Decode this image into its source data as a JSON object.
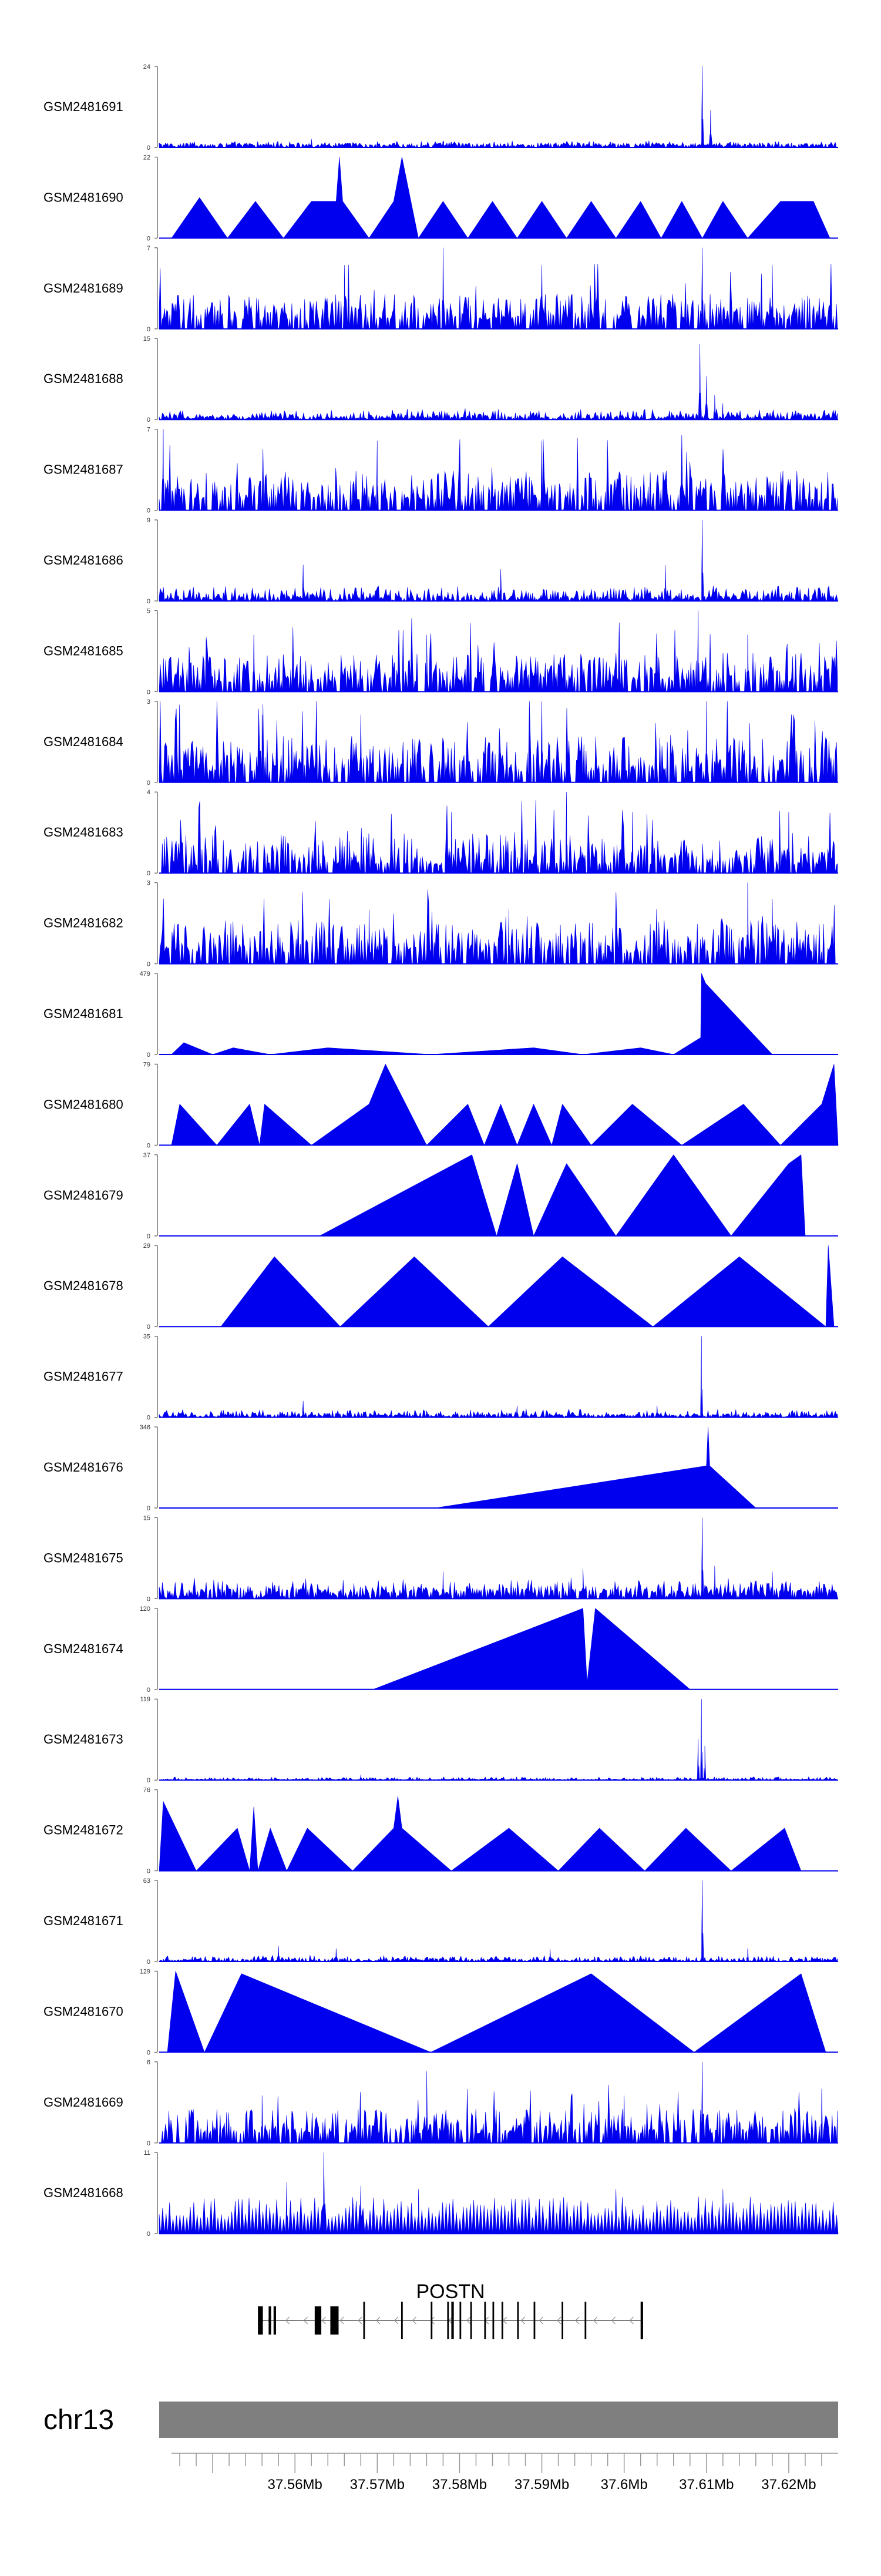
{
  "chart_data": {
    "type": "area",
    "title": "",
    "chromosome": "chr13",
    "xlim": [
      37.5435,
      37.626
    ],
    "x_unit": "Mb",
    "x_tick_labels": [
      "37.56Mb",
      "37.57Mb",
      "37.58Mb",
      "37.59Mb",
      "37.6Mb",
      "37.61Mb",
      "37.62Mb"
    ],
    "x_tick_values": [
      37.56,
      37.57,
      37.58,
      37.59,
      37.6,
      37.61,
      37.62
    ],
    "gene": {
      "name": "POSTN",
      "strand": "-",
      "start": 37.5555,
      "end": 37.6023,
      "exons": [
        [
          37.5555,
          37.5561
        ],
        [
          37.5568,
          37.5571
        ],
        [
          37.5574,
          37.5577
        ],
        [
          37.5624,
          37.5632
        ],
        [
          37.5643,
          37.5653
        ],
        [
          37.5683,
          37.5685
        ],
        [
          37.5729,
          37.5731
        ],
        [
          37.5765,
          37.5767
        ],
        [
          37.5785,
          37.5787
        ],
        [
          37.579,
          37.5793
        ],
        [
          37.58,
          37.5802
        ],
        [
          37.5813,
          37.5815
        ],
        [
          37.583,
          37.5832
        ],
        [
          37.584,
          37.5842
        ],
        [
          37.5851,
          37.5853
        ],
        [
          37.587,
          37.5872
        ],
        [
          37.589,
          37.5892
        ],
        [
          37.5924,
          37.5926
        ],
        [
          37.5952,
          37.5954
        ],
        [
          37.602,
          37.6023
        ]
      ]
    },
    "series": [
      {
        "name": "GSM2481691",
        "ymin": 0,
        "ymax": 24,
        "style": "dense",
        "baseline": 1.2,
        "noise": 0.8,
        "peaks": [
          [
            37.6095,
            24
          ],
          [
            37.6105,
            11
          ],
          [
            37.562,
            2.5
          ],
          [
            37.578,
            2
          ],
          [
            37.603,
            2
          ]
        ]
      },
      {
        "name": "GSM2481690",
        "ymin": 0,
        "ymax": 22,
        "style": "triangles",
        "points": [
          [
            37.545,
            0
          ],
          [
            37.5484,
            11
          ],
          [
            37.5518,
            0
          ],
          [
            37.5552,
            10
          ],
          [
            37.5586,
            0
          ],
          [
            37.562,
            10
          ],
          [
            37.565,
            10
          ],
          [
            37.5654,
            22
          ],
          [
            37.5658,
            10
          ],
          [
            37.569,
            0
          ],
          [
            37.572,
            10
          ],
          [
            37.573,
            22
          ],
          [
            37.575,
            0
          ],
          [
            37.578,
            10
          ],
          [
            37.581,
            0
          ],
          [
            37.584,
            10
          ],
          [
            37.587,
            0
          ],
          [
            37.59,
            10
          ],
          [
            37.593,
            0
          ],
          [
            37.596,
            10
          ],
          [
            37.599,
            0
          ],
          [
            37.602,
            10
          ],
          [
            37.6045,
            0
          ],
          [
            37.607,
            10
          ],
          [
            37.6095,
            0
          ],
          [
            37.612,
            10
          ],
          [
            37.615,
            0
          ],
          [
            37.619,
            10
          ],
          [
            37.623,
            10
          ],
          [
            37.625,
            0
          ]
        ]
      },
      {
        "name": "GSM2481689",
        "ymin": 0,
        "ymax": 7,
        "style": "spiky",
        "baseline": 0.8,
        "noise": 2.2,
        "peaks": [
          [
            37.578,
            7
          ],
          [
            37.6095,
            7
          ],
          [
            37.566,
            5.5
          ],
          [
            37.59,
            5.5
          ],
          [
            37.618,
            5.5
          ]
        ]
      },
      {
        "name": "GSM2481688",
        "ymin": 0,
        "ymax": 15,
        "style": "dense",
        "baseline": 0.6,
        "noise": 1.5,
        "peaks": [
          [
            37.6092,
            14
          ],
          [
            37.61,
            8
          ],
          [
            37.611,
            4.5
          ],
          [
            37.612,
            3
          ]
        ]
      },
      {
        "name": "GSM2481687",
        "ymin": 0,
        "ymax": 7,
        "style": "spiky",
        "baseline": 0.9,
        "noise": 2.5,
        "peaks": [
          [
            37.544,
            7
          ],
          [
            37.57,
            6
          ],
          [
            37.59,
            6
          ],
          [
            37.607,
            6.5
          ]
        ]
      },
      {
        "name": "GSM2481686",
        "ymin": 0,
        "ymax": 9,
        "style": "dense",
        "baseline": 0.5,
        "noise": 1.3,
        "peaks": [
          [
            37.6095,
            9
          ],
          [
            37.561,
            4
          ],
          [
            37.585,
            3.5
          ],
          [
            37.605,
            4
          ]
        ]
      },
      {
        "name": "GSM2481685",
        "ymin": 0,
        "ymax": 5,
        "style": "spiky",
        "baseline": 0.6,
        "noise": 1.8,
        "peaks": [
          [
            37.609,
            5
          ],
          [
            37.555,
            3.5
          ],
          [
            37.576,
            3.5
          ],
          [
            37.615,
            3.5
          ]
        ]
      },
      {
        "name": "GSM2481684",
        "ymin": 0,
        "ymax": 3,
        "style": "spiky",
        "baseline": 0.4,
        "noise": 1.3,
        "peaks": [
          [
            37.59,
            3
          ],
          [
            37.61,
            3
          ],
          [
            37.556,
            2.5
          ],
          [
            37.568,
            2.5
          ]
        ]
      },
      {
        "name": "GSM2481683",
        "ymin": 0,
        "ymax": 4,
        "style": "spiky",
        "baseline": 0.4,
        "noise": 1.5,
        "peaks": [
          [
            37.593,
            4
          ],
          [
            37.579,
            3
          ],
          [
            37.601,
            3
          ],
          [
            37.62,
            3
          ]
        ]
      },
      {
        "name": "GSM2481682",
        "ymin": 0,
        "ymax": 3,
        "style": "spiky",
        "baseline": 0.4,
        "noise": 1.2,
        "peaks": [
          [
            37.615,
            3
          ],
          [
            37.618,
            2.4
          ],
          [
            37.569,
            2
          ],
          [
            37.586,
            2
          ]
        ]
      },
      {
        "name": "GSM2481681",
        "ymin": 0,
        "ymax": 479,
        "style": "triangles",
        "points": [
          [
            37.545,
            0
          ],
          [
            37.5465,
            70
          ],
          [
            37.55,
            0
          ],
          [
            37.5525,
            40
          ],
          [
            37.557,
            0
          ],
          [
            37.564,
            40
          ],
          [
            37.5765,
            0
          ],
          [
            37.589,
            40
          ],
          [
            37.595,
            0
          ],
          [
            37.602,
            40
          ],
          [
            37.606,
            0
          ],
          [
            37.6093,
            100
          ],
          [
            37.6094,
            479
          ],
          [
            37.6099,
            420
          ],
          [
            37.618,
            0
          ]
        ]
      },
      {
        "name": "GSM2481680",
        "ymin": 0,
        "ymax": 79,
        "style": "triangles",
        "points": [
          [
            37.545,
            0
          ],
          [
            37.546,
            40
          ],
          [
            37.5505,
            0
          ],
          [
            37.5545,
            40
          ],
          [
            37.5557,
            0
          ],
          [
            37.5563,
            40
          ],
          [
            37.562,
            0
          ],
          [
            37.569,
            40
          ],
          [
            37.571,
            79
          ],
          [
            37.576,
            0
          ],
          [
            37.581,
            40
          ],
          [
            37.583,
            0
          ],
          [
            37.585,
            40
          ],
          [
            37.587,
            0
          ],
          [
            37.589,
            40
          ],
          [
            37.5912,
            0
          ],
          [
            37.5925,
            40
          ],
          [
            37.596,
            0
          ],
          [
            37.601,
            40
          ],
          [
            37.607,
            0
          ],
          [
            37.6145,
            40
          ],
          [
            37.619,
            0
          ],
          [
            37.624,
            40
          ],
          [
            37.6255,
            79
          ],
          [
            37.626,
            0
          ]
        ]
      },
      {
        "name": "GSM2481679",
        "ymin": 0,
        "ymax": 37,
        "style": "triangles",
        "points": [
          [
            37.563,
            0
          ],
          [
            37.5815,
            37
          ],
          [
            37.5845,
            0
          ],
          [
            37.587,
            33
          ],
          [
            37.589,
            0
          ],
          [
            37.593,
            33
          ],
          [
            37.599,
            0
          ],
          [
            37.606,
            37
          ],
          [
            37.613,
            0
          ],
          [
            37.62,
            33
          ],
          [
            37.6215,
            37
          ],
          [
            37.622,
            0
          ]
        ]
      },
      {
        "name": "GSM2481678",
        "ymin": 0,
        "ymax": 29,
        "style": "triangles",
        "points": [
          [
            37.551,
            0
          ],
          [
            37.5575,
            25
          ],
          [
            37.5655,
            0
          ],
          [
            37.5745,
            25
          ],
          [
            37.5835,
            0
          ],
          [
            37.5925,
            25
          ],
          [
            37.6035,
            0
          ],
          [
            37.614,
            25
          ],
          [
            37.6245,
            0
          ],
          [
            37.6248,
            29
          ],
          [
            37.6255,
            0
          ]
        ]
      },
      {
        "name": "GSM2481677",
        "ymin": 0,
        "ymax": 35,
        "style": "dense",
        "baseline": 1.2,
        "noise": 2.5,
        "peaks": [
          [
            37.6094,
            35
          ],
          [
            37.561,
            7
          ],
          [
            37.587,
            5
          ],
          [
            37.604,
            5
          ]
        ]
      },
      {
        "name": "GSM2481676",
        "ymin": 0,
        "ymax": 346,
        "style": "triangles",
        "points": [
          [
            37.577,
            0
          ],
          [
            37.61,
            180
          ],
          [
            37.6102,
            346
          ],
          [
            37.6104,
            180
          ],
          [
            37.616,
            0
          ]
        ]
      },
      {
        "name": "GSM2481675",
        "ymin": 0,
        "ymax": 15,
        "style": "dense",
        "baseline": 1.8,
        "noise": 2.4,
        "peaks": [
          [
            37.6095,
            15
          ],
          [
            37.578,
            5
          ],
          [
            37.595,
            5.5
          ],
          [
            37.611,
            6
          ],
          [
            37.618,
            5
          ]
        ]
      },
      {
        "name": "GSM2481674",
        "ymin": 0,
        "ymax": 120,
        "style": "triangles",
        "points": [
          [
            37.5695,
            0
          ],
          [
            37.595,
            120
          ],
          [
            37.5955,
            10
          ],
          [
            37.5965,
            120
          ],
          [
            37.608,
            0
          ]
        ]
      },
      {
        "name": "GSM2481673",
        "ymin": 0,
        "ymax": 119,
        "style": "dense",
        "baseline": 1.5,
        "noise": 3.5,
        "peaks": [
          [
            37.6094,
            119
          ],
          [
            37.609,
            60
          ],
          [
            37.6098,
            50
          ],
          [
            37.568,
            8
          ]
        ]
      },
      {
        "name": "GSM2481672",
        "ymin": 0,
        "ymax": 76,
        "style": "triangles",
        "points": [
          [
            37.5435,
            0
          ],
          [
            37.544,
            65
          ],
          [
            37.548,
            0
          ],
          [
            37.553,
            40
          ],
          [
            37.5545,
            0
          ],
          [
            37.555,
            60
          ],
          [
            37.5555,
            0
          ],
          [
            37.557,
            40
          ],
          [
            37.559,
            0
          ],
          [
            37.5615,
            40
          ],
          [
            37.567,
            0
          ],
          [
            37.572,
            40
          ],
          [
            37.5725,
            70
          ],
          [
            37.573,
            40
          ],
          [
            37.579,
            0
          ],
          [
            37.586,
            40
          ],
          [
            37.592,
            0
          ],
          [
            37.597,
            40
          ],
          [
            37.6025,
            0
          ],
          [
            37.6075,
            40
          ],
          [
            37.613,
            0
          ],
          [
            37.6195,
            40
          ],
          [
            37.6215,
            0
          ]
        ]
      },
      {
        "name": "GSM2481671",
        "ymin": 0,
        "ymax": 63,
        "style": "dense",
        "baseline": 1.5,
        "noise": 3.5,
        "peaks": [
          [
            37.6095,
            63
          ],
          [
            37.558,
            12
          ],
          [
            37.565,
            10
          ],
          [
            37.591,
            10
          ],
          [
            37.615,
            10
          ]
        ]
      },
      {
        "name": "GSM2481670",
        "ymin": 0,
        "ymax": 129,
        "style": "triangles",
        "points": [
          [
            37.5445,
            0
          ],
          [
            37.5455,
            129
          ],
          [
            37.549,
            0
          ],
          [
            37.5535,
            125
          ],
          [
            37.5765,
            0
          ],
          [
            37.596,
            125
          ],
          [
            37.6085,
            0
          ],
          [
            37.6215,
            125
          ],
          [
            37.6245,
            0
          ]
        ]
      },
      {
        "name": "GSM2481669",
        "ymin": 0,
        "ymax": 6,
        "style": "spiky",
        "baseline": 0.7,
        "noise": 1.8,
        "peaks": [
          [
            37.6095,
            6
          ],
          [
            37.576,
            5.3
          ],
          [
            37.556,
            3.5
          ],
          [
            37.6,
            3.5
          ],
          [
            37.624,
            4
          ]
        ]
      },
      {
        "name": "GSM2481668",
        "ymin": 0,
        "ymax": 11,
        "style": "triangles-dense",
        "baseline": 2,
        "noise": 3,
        "peaks": [
          [
            37.5635,
            11
          ],
          [
            37.559,
            7
          ],
          [
            37.568,
            6.5
          ],
          [
            37.575,
            6
          ],
          [
            37.599,
            6
          ],
          [
            37.612,
            6
          ]
        ]
      }
    ]
  }
}
